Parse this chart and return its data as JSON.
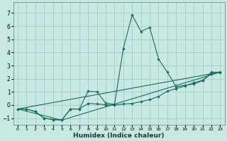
{
  "xlabel": "Humidex (Indice chaleur)",
  "xlim": [
    -0.5,
    23.5
  ],
  "ylim": [
    -1.5,
    7.8
  ],
  "yticks": [
    -1,
    0,
    1,
    2,
    3,
    4,
    5,
    6,
    7
  ],
  "xticks": [
    0,
    1,
    2,
    3,
    4,
    5,
    6,
    7,
    8,
    9,
    10,
    11,
    12,
    13,
    14,
    15,
    16,
    17,
    18,
    19,
    20,
    21,
    22,
    23
  ],
  "bg_color": "#c8e8e4",
  "line_color": "#1a6b5a",
  "grid_color": "#a8ccca",
  "line1_x": [
    0,
    1,
    2,
    3,
    4,
    5,
    6,
    7,
    8,
    9,
    10,
    11,
    12,
    13,
    14,
    15,
    16,
    17,
    18,
    19,
    20,
    21,
    22,
    23
  ],
  "line1_y": [
    -0.3,
    -0.3,
    -0.5,
    -1.0,
    -1.1,
    -1.15,
    -0.3,
    -0.3,
    1.05,
    1.0,
    0.15,
    0.05,
    4.3,
    6.85,
    5.6,
    5.9,
    3.5,
    2.5,
    1.4,
    1.5,
    1.6,
    1.85,
    2.5,
    2.5
  ],
  "line2_x": [
    0,
    1,
    2,
    3,
    4,
    5,
    6,
    7,
    8,
    9,
    10,
    11,
    12,
    13,
    14,
    15,
    16,
    17,
    18,
    19,
    20,
    21,
    22,
    23
  ],
  "line2_y": [
    -0.3,
    -0.3,
    -0.5,
    -1.0,
    -1.1,
    -1.15,
    -0.3,
    -0.3,
    0.12,
    0.08,
    0.02,
    -0.02,
    0.08,
    0.12,
    0.25,
    0.42,
    0.65,
    1.05,
    1.25,
    1.45,
    1.7,
    1.88,
    2.38,
    2.48
  ],
  "line3_x": [
    0,
    5,
    23
  ],
  "line3_y": [
    -0.3,
    -1.15,
    2.5
  ],
  "line4_x": [
    0,
    23
  ],
  "line4_y": [
    -0.3,
    2.5
  ]
}
